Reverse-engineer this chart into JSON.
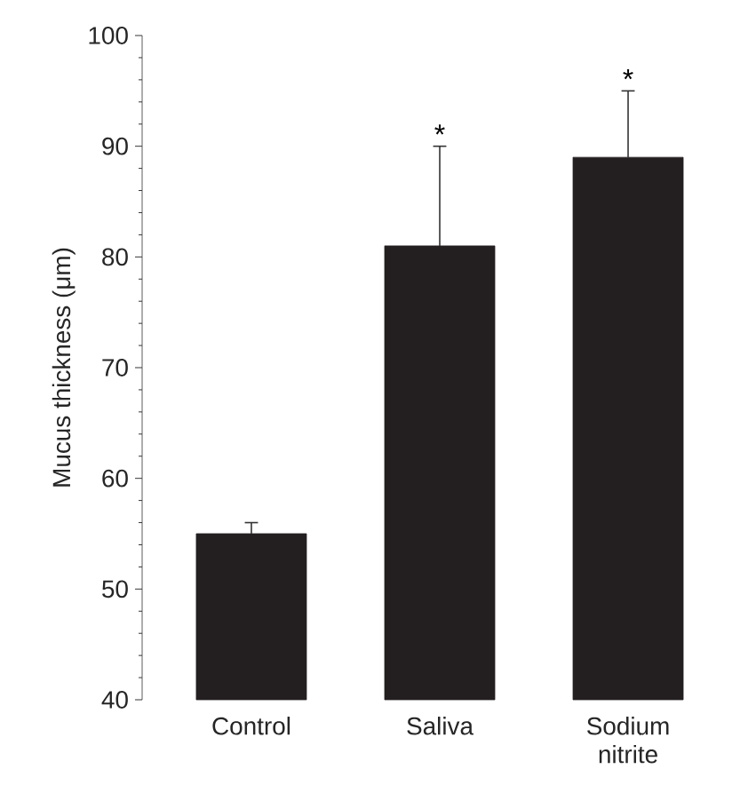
{
  "chart_data": {
    "type": "bar",
    "ylabel": "Mucus thickness (μm)",
    "categories": [
      "Control",
      "Saliva",
      "Sodium nitrite"
    ],
    "values": [
      55,
      81,
      89
    ],
    "errors": [
      [
        55,
        56
      ],
      [
        81,
        90
      ],
      [
        89,
        95
      ]
    ],
    "color": "#231f20",
    "ylim": [
      40,
      100
    ],
    "yticks": [
      40,
      50,
      60,
      70,
      80,
      90,
      100
    ],
    "annotations": [
      {
        "text": "*",
        "x": "Saliva",
        "y": 90
      },
      {
        "text": "*",
        "x": "Sodium nitrite",
        "y": 95
      }
    ]
  }
}
